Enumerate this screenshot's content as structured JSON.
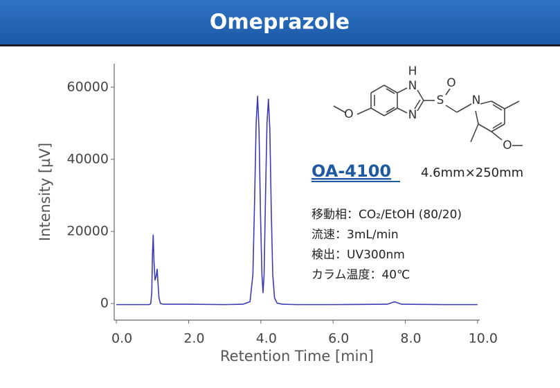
{
  "chart_data": {
    "type": "line",
    "title": "Omeprazole",
    "x_label": "Retention Time [min]",
    "y_label": "Intensity [µV]",
    "x": [
      0,
      0.5,
      0.9,
      0.95,
      0.98,
      1.0,
      1.02,
      1.04,
      1.07,
      1.1,
      1.13,
      1.15,
      1.18,
      1.22,
      1.3,
      1.6,
      2.0,
      3.0,
      3.5,
      3.7,
      3.78,
      3.83,
      3.87,
      3.91,
      3.95,
      3.99,
      4.03,
      4.06,
      4.09,
      4.13,
      4.17,
      4.21,
      4.25,
      4.29,
      4.33,
      4.38,
      4.45,
      4.6,
      5.0,
      6.0,
      7.5,
      7.7,
      7.9,
      9.0,
      10.0
    ],
    "values": [
      -300,
      -300,
      -300,
      -100,
      3000,
      14000,
      19000,
      12000,
      6500,
      7500,
      9500,
      6000,
      1500,
      0,
      -200,
      -200,
      -200,
      -300,
      -200,
      500,
      8000,
      30000,
      50000,
      57500,
      48000,
      25000,
      8000,
      3000,
      8000,
      30000,
      50000,
      56700,
      48000,
      25000,
      8000,
      1500,
      100,
      -200,
      -300,
      -300,
      -200,
      500,
      -200,
      -300,
      -300
    ],
    "color": "#3b3bb8",
    "xlim": [
      -0.06,
      10.06
    ],
    "ylim": [
      -4600,
      66500
    ],
    "xticks": [
      {
        "value": 0,
        "label": "0.0"
      },
      {
        "value": 2,
        "label": "2.0"
      },
      {
        "value": 4,
        "label": "4.0"
      },
      {
        "value": 6,
        "label": "6.0"
      },
      {
        "value": 8,
        "label": "8.0"
      },
      {
        "value": 10,
        "label": "10.0"
      }
    ],
    "yticks": [
      0,
      20000,
      40000,
      60000
    ],
    "grid": false,
    "column": "OA-4100",
    "column_size": "4.6mm×250mm",
    "conditions": [
      "移動相：CO₂/EtOH (80/20)",
      "流速：3mL/min",
      "検出：UV300nm",
      "カラム温度：40℃"
    ],
    "structure_atoms": [
      "H",
      "N",
      "N",
      "S",
      "O",
      "O",
      "N",
      "O"
    ]
  }
}
